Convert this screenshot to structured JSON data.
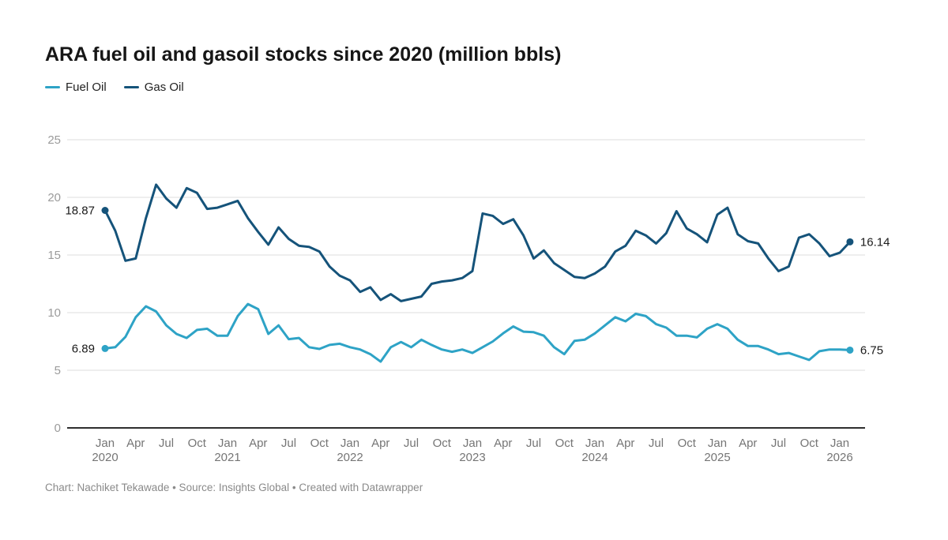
{
  "title": "ARA fuel oil and gasoil stocks since 2020 (million bbls)",
  "legend": [
    {
      "label": "Fuel Oil",
      "color": "#2ea3c6"
    },
    {
      "label": "Gas Oil",
      "color": "#15537a"
    }
  ],
  "footer": "Chart: Nachiket Tekawade • Source: Insights Global • Created with Datawrapper",
  "colors": {
    "fuel_oil": "#2ea3c6",
    "gas_oil": "#15537a",
    "gridline": "#dedede",
    "axis_line": "#2e2e2e",
    "y_tick_text": "#9b9b9b",
    "x_tick_text": "#757575",
    "value_label_text": "#1a1a1a"
  },
  "chart_data": {
    "type": "line",
    "title": "ARA fuel oil and gasoil stocks since 2020 (million bbls)",
    "unit": "million bbls",
    "x_start": "2020-01",
    "x_end": "2026-02",
    "x_frequency": "monthly",
    "x_tick_months": [
      "Jan",
      "Apr",
      "Jul",
      "Oct"
    ],
    "years": [
      2020,
      2021,
      2022,
      2023,
      2024,
      2025,
      2026
    ],
    "ylim": [
      0,
      25
    ],
    "yticks": [
      0,
      5,
      10,
      15,
      20,
      25
    ],
    "grid": true,
    "legend_position": "top-left",
    "series": [
      {
        "name": "Fuel Oil",
        "color": "#2ea3c6",
        "first_label": "6.89",
        "last_label": "6.75",
        "values": [
          6.89,
          7.0,
          7.9,
          9.6,
          10.55,
          10.1,
          8.9,
          8.15,
          7.8,
          8.5,
          8.6,
          8.0,
          8.0,
          9.7,
          10.75,
          10.3,
          8.15,
          8.9,
          7.7,
          7.8,
          7.0,
          6.85,
          7.2,
          7.3,
          7.0,
          6.8,
          6.4,
          5.75,
          7.0,
          7.45,
          7.0,
          7.65,
          7.2,
          6.8,
          6.6,
          6.8,
          6.5,
          7.0,
          7.5,
          8.2,
          8.8,
          8.35,
          8.3,
          8.0,
          7.0,
          6.4,
          7.55,
          7.65,
          8.2,
          8.9,
          9.6,
          9.25,
          9.9,
          9.7,
          9.0,
          8.7,
          8.0,
          8.0,
          7.85,
          8.6,
          9.0,
          8.6,
          7.65,
          7.1,
          7.1,
          6.8,
          6.4,
          6.5,
          6.2,
          5.9,
          6.65,
          6.8,
          6.8,
          6.75
        ]
      },
      {
        "name": "Gas Oil",
        "color": "#15537a",
        "first_label": "18.87",
        "last_label": "16.14",
        "values": [
          18.87,
          17.1,
          14.5,
          14.7,
          18.2,
          21.1,
          19.9,
          19.1,
          20.8,
          20.4,
          19.0,
          19.1,
          19.4,
          19.7,
          18.2,
          17.0,
          15.9,
          17.4,
          16.4,
          15.8,
          15.7,
          15.3,
          14.0,
          13.2,
          12.8,
          11.8,
          12.2,
          11.1,
          11.6,
          11.0,
          11.2,
          11.4,
          12.5,
          12.7,
          12.8,
          13.0,
          13.6,
          18.6,
          18.4,
          17.7,
          18.1,
          16.7,
          14.7,
          15.4,
          14.3,
          13.7,
          13.1,
          13.0,
          13.4,
          14.0,
          15.3,
          15.8,
          17.1,
          16.7,
          16.0,
          16.9,
          18.8,
          17.3,
          16.8,
          16.1,
          18.5,
          19.1,
          16.8,
          16.2,
          16.0,
          14.7,
          13.6,
          14.0,
          16.5,
          16.8,
          16.0,
          14.9,
          15.2,
          16.14
        ]
      }
    ]
  }
}
